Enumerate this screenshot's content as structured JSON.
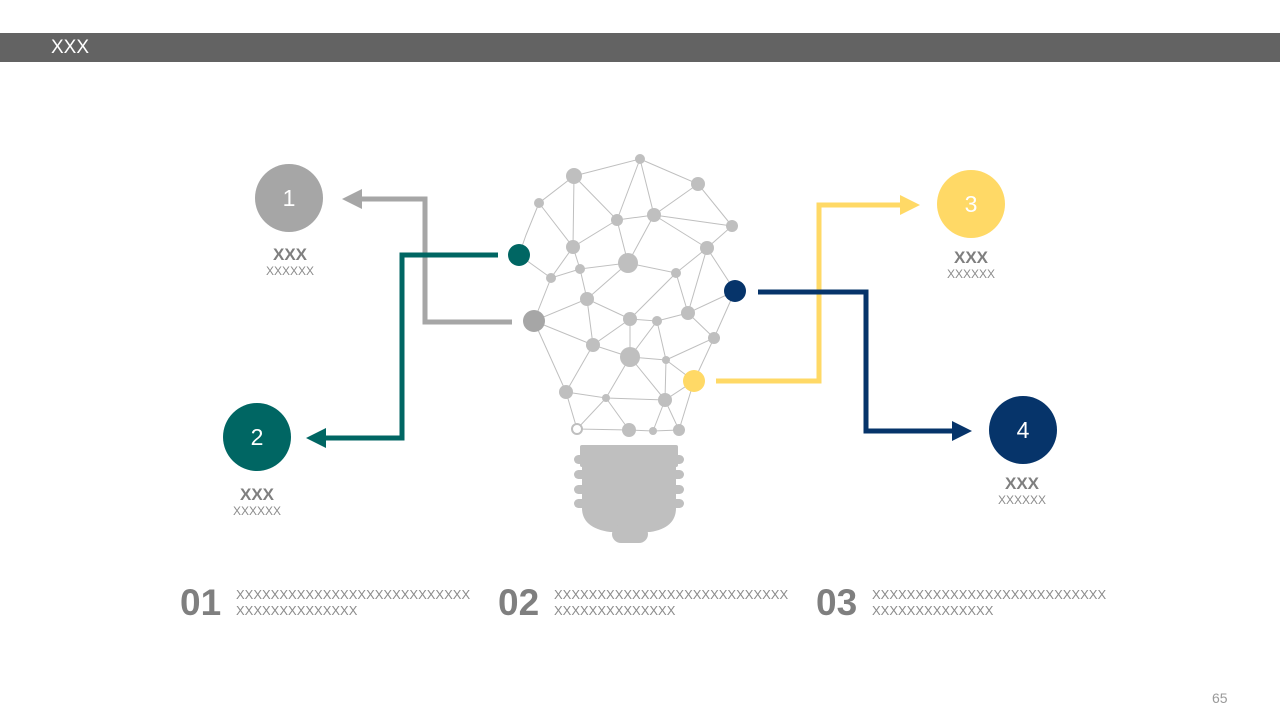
{
  "header": {
    "title": "XXX"
  },
  "colors": {
    "gray": "#a6a6a6",
    "teal": "#006663",
    "yellow": "#ffd966",
    "navy": "#06346a",
    "bulb": "#bfbfbf"
  },
  "nodes": [
    {
      "number": "1",
      "title": "XXX",
      "subtitle": "XXXXXX",
      "color": "gray"
    },
    {
      "number": "2",
      "title": "XXX",
      "subtitle": "XXXXXX",
      "color": "teal"
    },
    {
      "number": "3",
      "title": "XXX",
      "subtitle": "XXXXXX",
      "color": "yellow"
    },
    {
      "number": "4",
      "title": "XXX",
      "subtitle": "XXXXXX",
      "color": "navy"
    }
  ],
  "blocks": [
    {
      "number": "01",
      "text": "XXXXXXXXXXXXXXXXXXXXXXXXXXXXXXXXXXXXXXXXX"
    },
    {
      "number": "02",
      "text": "XXXXXXXXXXXXXXXXXXXXXXXXXXXXXXXXXXXXXXXXX"
    },
    {
      "number": "03",
      "text": "XXXXXXXXXXXXXXXXXXXXXXXXXXXXXXXXXXXXXXXXX"
    }
  ],
  "page_number": "65"
}
